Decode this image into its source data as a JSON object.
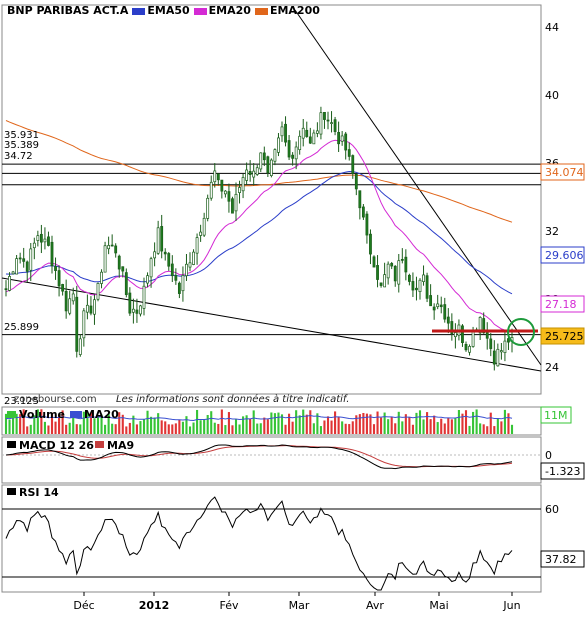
{
  "colors": {
    "ema50": "#2b3ec9",
    "ema20": "#d42ad4",
    "ema200": "#e0661b",
    "candle_up": "#1e9a1e",
    "candle_down": "#1e7a1e",
    "volume_up": "#36c436",
    "volume_down": "#e03434",
    "ma20_volume": "#3a4fd1",
    "macd": "#000000",
    "macd_signal": "#c43d3d",
    "rsi": "#000000",
    "support_line": "#c01818",
    "highlight_circle": "#1d9a3b",
    "price_tag_bg": "#f6bb1a"
  },
  "legend": {
    "title": "BNP PARIBAS ACT.A",
    "ema50": "EMA50",
    "ema20": "EMA20",
    "ema200": "EMA200"
  },
  "watermark": "zonebourse.com",
  "disclaimer": "Les informations sont données à titre indicatif.",
  "main_labels": {
    "r1": "35.931",
    "r2": "35.389",
    "r3": "34.72",
    "r4": "25.899",
    "low": "23.125"
  },
  "right_tags": {
    "ema200": "34.074",
    "ema50": "29.606",
    "ema20": "27.18",
    "last": "25.725"
  },
  "volume_panel": {
    "label": "Volume",
    "ma_label": "MA20",
    "right_tag": "11M"
  },
  "macd_panel": {
    "label": "MACD 12 26",
    "signal_label": "MA9",
    "right_tag": "-1.323",
    "zero": "0"
  },
  "rsi_panel": {
    "label": "RSI 14",
    "right_tag": "37.82",
    "level": "60"
  },
  "chart_data": [
    {
      "type": "candlestick",
      "title": "BNP PARIBAS ACT.A",
      "x_tick_labels": [
        "Déc",
        "2012",
        "Fév",
        "Mar",
        "Avr",
        "Mai",
        "Jun"
      ],
      "y_ticks": [
        24,
        28,
        32,
        36,
        40,
        44
      ],
      "ylim": [
        22.4,
        45.3
      ],
      "grid": false,
      "start_close": 28.6,
      "price_path": [
        [
          0,
          28.6
        ],
        [
          3,
          30.6
        ],
        [
          6,
          30.0
        ],
        [
          9,
          31.8
        ],
        [
          12,
          31.0
        ],
        [
          15,
          29.0
        ],
        [
          17,
          27.6
        ],
        [
          19,
          28.3
        ],
        [
          20,
          25.2
        ],
        [
          22,
          26.9
        ],
        [
          24,
          27.5
        ],
        [
          26,
          28.5
        ],
        [
          28,
          31.2
        ],
        [
          31,
          30.9
        ],
        [
          33,
          29.2
        ],
        [
          35,
          27.4
        ],
        [
          37,
          27.3
        ],
        [
          39,
          28.5
        ],
        [
          41,
          30.5
        ],
        [
          43,
          31.8
        ],
        [
          45,
          30.3
        ],
        [
          47,
          29.6
        ],
        [
          49,
          28.4
        ],
        [
          51,
          29.9
        ],
        [
          53,
          31.0
        ],
        [
          55,
          32.3
        ],
        [
          57,
          34.0
        ],
        [
          59,
          35.4
        ],
        [
          60,
          34.6
        ],
        [
          62,
          34.4
        ],
        [
          64,
          33.1
        ],
        [
          66,
          34.6
        ],
        [
          68,
          35.8
        ],
        [
          70,
          35.3
        ],
        [
          72,
          36.8
        ],
        [
          74,
          35.1
        ],
        [
          76,
          36.4
        ],
        [
          78,
          37.9
        ],
        [
          80,
          36.3
        ],
        [
          82,
          37.1
        ],
        [
          84,
          38.3
        ],
        [
          86,
          37.0
        ],
        [
          88,
          38.1
        ],
        [
          90,
          39.0
        ],
        [
          92,
          38.3
        ],
        [
          94,
          37.5
        ],
        [
          96,
          36.8
        ],
        [
          98,
          35.3
        ],
        [
          100,
          33.7
        ],
        [
          102,
          31.4
        ],
        [
          104,
          30.3
        ],
        [
          106,
          28.6
        ],
        [
          108,
          29.9
        ],
        [
          110,
          29.3
        ],
        [
          112,
          30.6
        ],
        [
          114,
          29.4
        ],
        [
          116,
          28.5
        ],
        [
          118,
          29.1
        ],
        [
          120,
          27.6
        ],
        [
          122,
          27.9
        ],
        [
          124,
          27.2
        ],
        [
          126,
          26.2
        ],
        [
          128,
          26.2
        ],
        [
          130,
          25.3
        ],
        [
          132,
          26.0
        ],
        [
          134,
          27.0
        ],
        [
          136,
          25.7
        ],
        [
          138,
          24.6
        ],
        [
          140,
          25.0
        ],
        [
          142,
          25.6
        ],
        [
          143,
          25.725
        ]
      ],
      "n_sessions": 144,
      "overlays": [
        {
          "name": "EMA20",
          "last": 27.18
        },
        {
          "name": "EMA50",
          "last": 29.606
        },
        {
          "name": "EMA200",
          "last": 34.074
        }
      ],
      "horizontal_levels": [
        35.931,
        35.389,
        34.72,
        25.899
      ],
      "support_segment_level": 25.899,
      "last_price": 25.725,
      "lowest_label": 23.125
    },
    {
      "type": "bar",
      "title": "Volume",
      "series": [
        {
          "name": "Volume"
        },
        {
          "name": "MA20"
        }
      ],
      "last_label": "11M"
    },
    {
      "type": "line",
      "title": "MACD 12 26",
      "series": [
        {
          "name": "MACD 12 26"
        },
        {
          "name": "MA9"
        }
      ],
      "y_ticks": [
        0
      ],
      "last_value": -1.323
    },
    {
      "type": "line",
      "title": "RSI 14",
      "series": [
        {
          "name": "RSI 14"
        }
      ],
      "y_ticks": [
        60
      ],
      "last_value": 37.82
    }
  ]
}
